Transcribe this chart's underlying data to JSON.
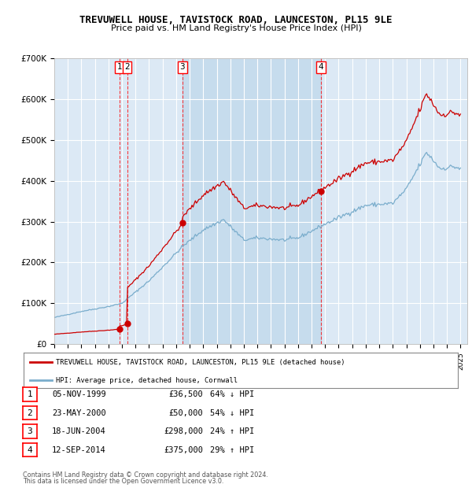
{
  "title": "TREVUWELL HOUSE, TAVISTOCK ROAD, LAUNCESTON, PL15 9LE",
  "subtitle": "Price paid vs. HM Land Registry's House Price Index (HPI)",
  "legend_line1": "TREVUWELL HOUSE, TAVISTOCK ROAD, LAUNCESTON, PL15 9LE (detached house)",
  "legend_line2": "HPI: Average price, detached house, Cornwall",
  "footer1": "Contains HM Land Registry data © Crown copyright and database right 2024.",
  "footer2": "This data is licensed under the Open Government Licence v3.0.",
  "transactions": [
    {
      "id": 1,
      "date": "05-NOV-1999",
      "price": 36500,
      "pct": "64% ↓ HPI",
      "t": 1999.833
    },
    {
      "id": 2,
      "date": "23-MAY-2000",
      "price": 50000,
      "pct": "54% ↓ HPI",
      "t": 2000.375
    },
    {
      "id": 3,
      "date": "18-JUN-2004",
      "price": 298000,
      "pct": "24% ↑ HPI",
      "t": 2004.458
    },
    {
      "id": 4,
      "date": "12-SEP-2014",
      "price": 375000,
      "pct": "29% ↑ HPI",
      "t": 2014.708
    }
  ],
  "plot_bg_color": "#dce9f5",
  "red_line_color": "#cc0000",
  "blue_line_color": "#7aadcc",
  "ylim": [
    0,
    700000
  ],
  "yticks": [
    0,
    100000,
    200000,
    300000,
    400000,
    500000,
    600000,
    700000
  ],
  "xlim_start": 1995,
  "xlim_end": 2025.5,
  "hpi_milestones": [
    [
      1995.0,
      65000
    ],
    [
      1997.0,
      80000
    ],
    [
      1999.0,
      92000
    ],
    [
      2000.0,
      100000
    ],
    [
      2002.0,
      155000
    ],
    [
      2004.5,
      240000
    ],
    [
      2006.0,
      280000
    ],
    [
      2007.5,
      305000
    ],
    [
      2009.0,
      255000
    ],
    [
      2010.0,
      260000
    ],
    [
      2012.0,
      255000
    ],
    [
      2013.0,
      260000
    ],
    [
      2014.75,
      290000
    ],
    [
      2016.0,
      310000
    ],
    [
      2018.0,
      340000
    ],
    [
      2020.0,
      345000
    ],
    [
      2021.0,
      380000
    ],
    [
      2022.5,
      470000
    ],
    [
      2023.5,
      430000
    ],
    [
      2024.5,
      435000
    ],
    [
      2025.0,
      430000
    ]
  ]
}
